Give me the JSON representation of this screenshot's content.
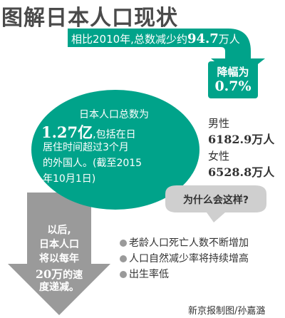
{
  "title": "图解日本人口现状",
  "banner": {
    "prefix": "相比2010年,总数减少约",
    "value": "94.7",
    "unit": "万人"
  },
  "drop_rate": {
    "label": "降幅为",
    "value": "0.7%"
  },
  "circle": {
    "line1": "日本人口总数为",
    "value": "1.27亿",
    "line2_suffix": ",包括在日",
    "line3": "居住时间超过3个月",
    "line4": "的外国人。(截至2015",
    "line5": "年10月1日)"
  },
  "gender": {
    "male_label": "男性",
    "male_value": "6182.9万人",
    "female_label": "女性",
    "female_value": "6528.8万人"
  },
  "question": "为什么会这样?",
  "reasons": [
    "老龄人口死亡人数不断增加",
    "人口自然减少率将持续增高",
    "出生率低"
  ],
  "down_arrow": {
    "line1": "以后,",
    "line2": "日本人口",
    "line3": "将以每年",
    "value": "20万",
    "line4_suffix": "的速",
    "line5": "度递减。"
  },
  "credit": "新京报制图/孙嘉潞",
  "colors": {
    "green": "#00a38a",
    "dark_green": "#007f6b",
    "gray": "#9a9a9a",
    "light_gray": "#cfcfcf"
  }
}
